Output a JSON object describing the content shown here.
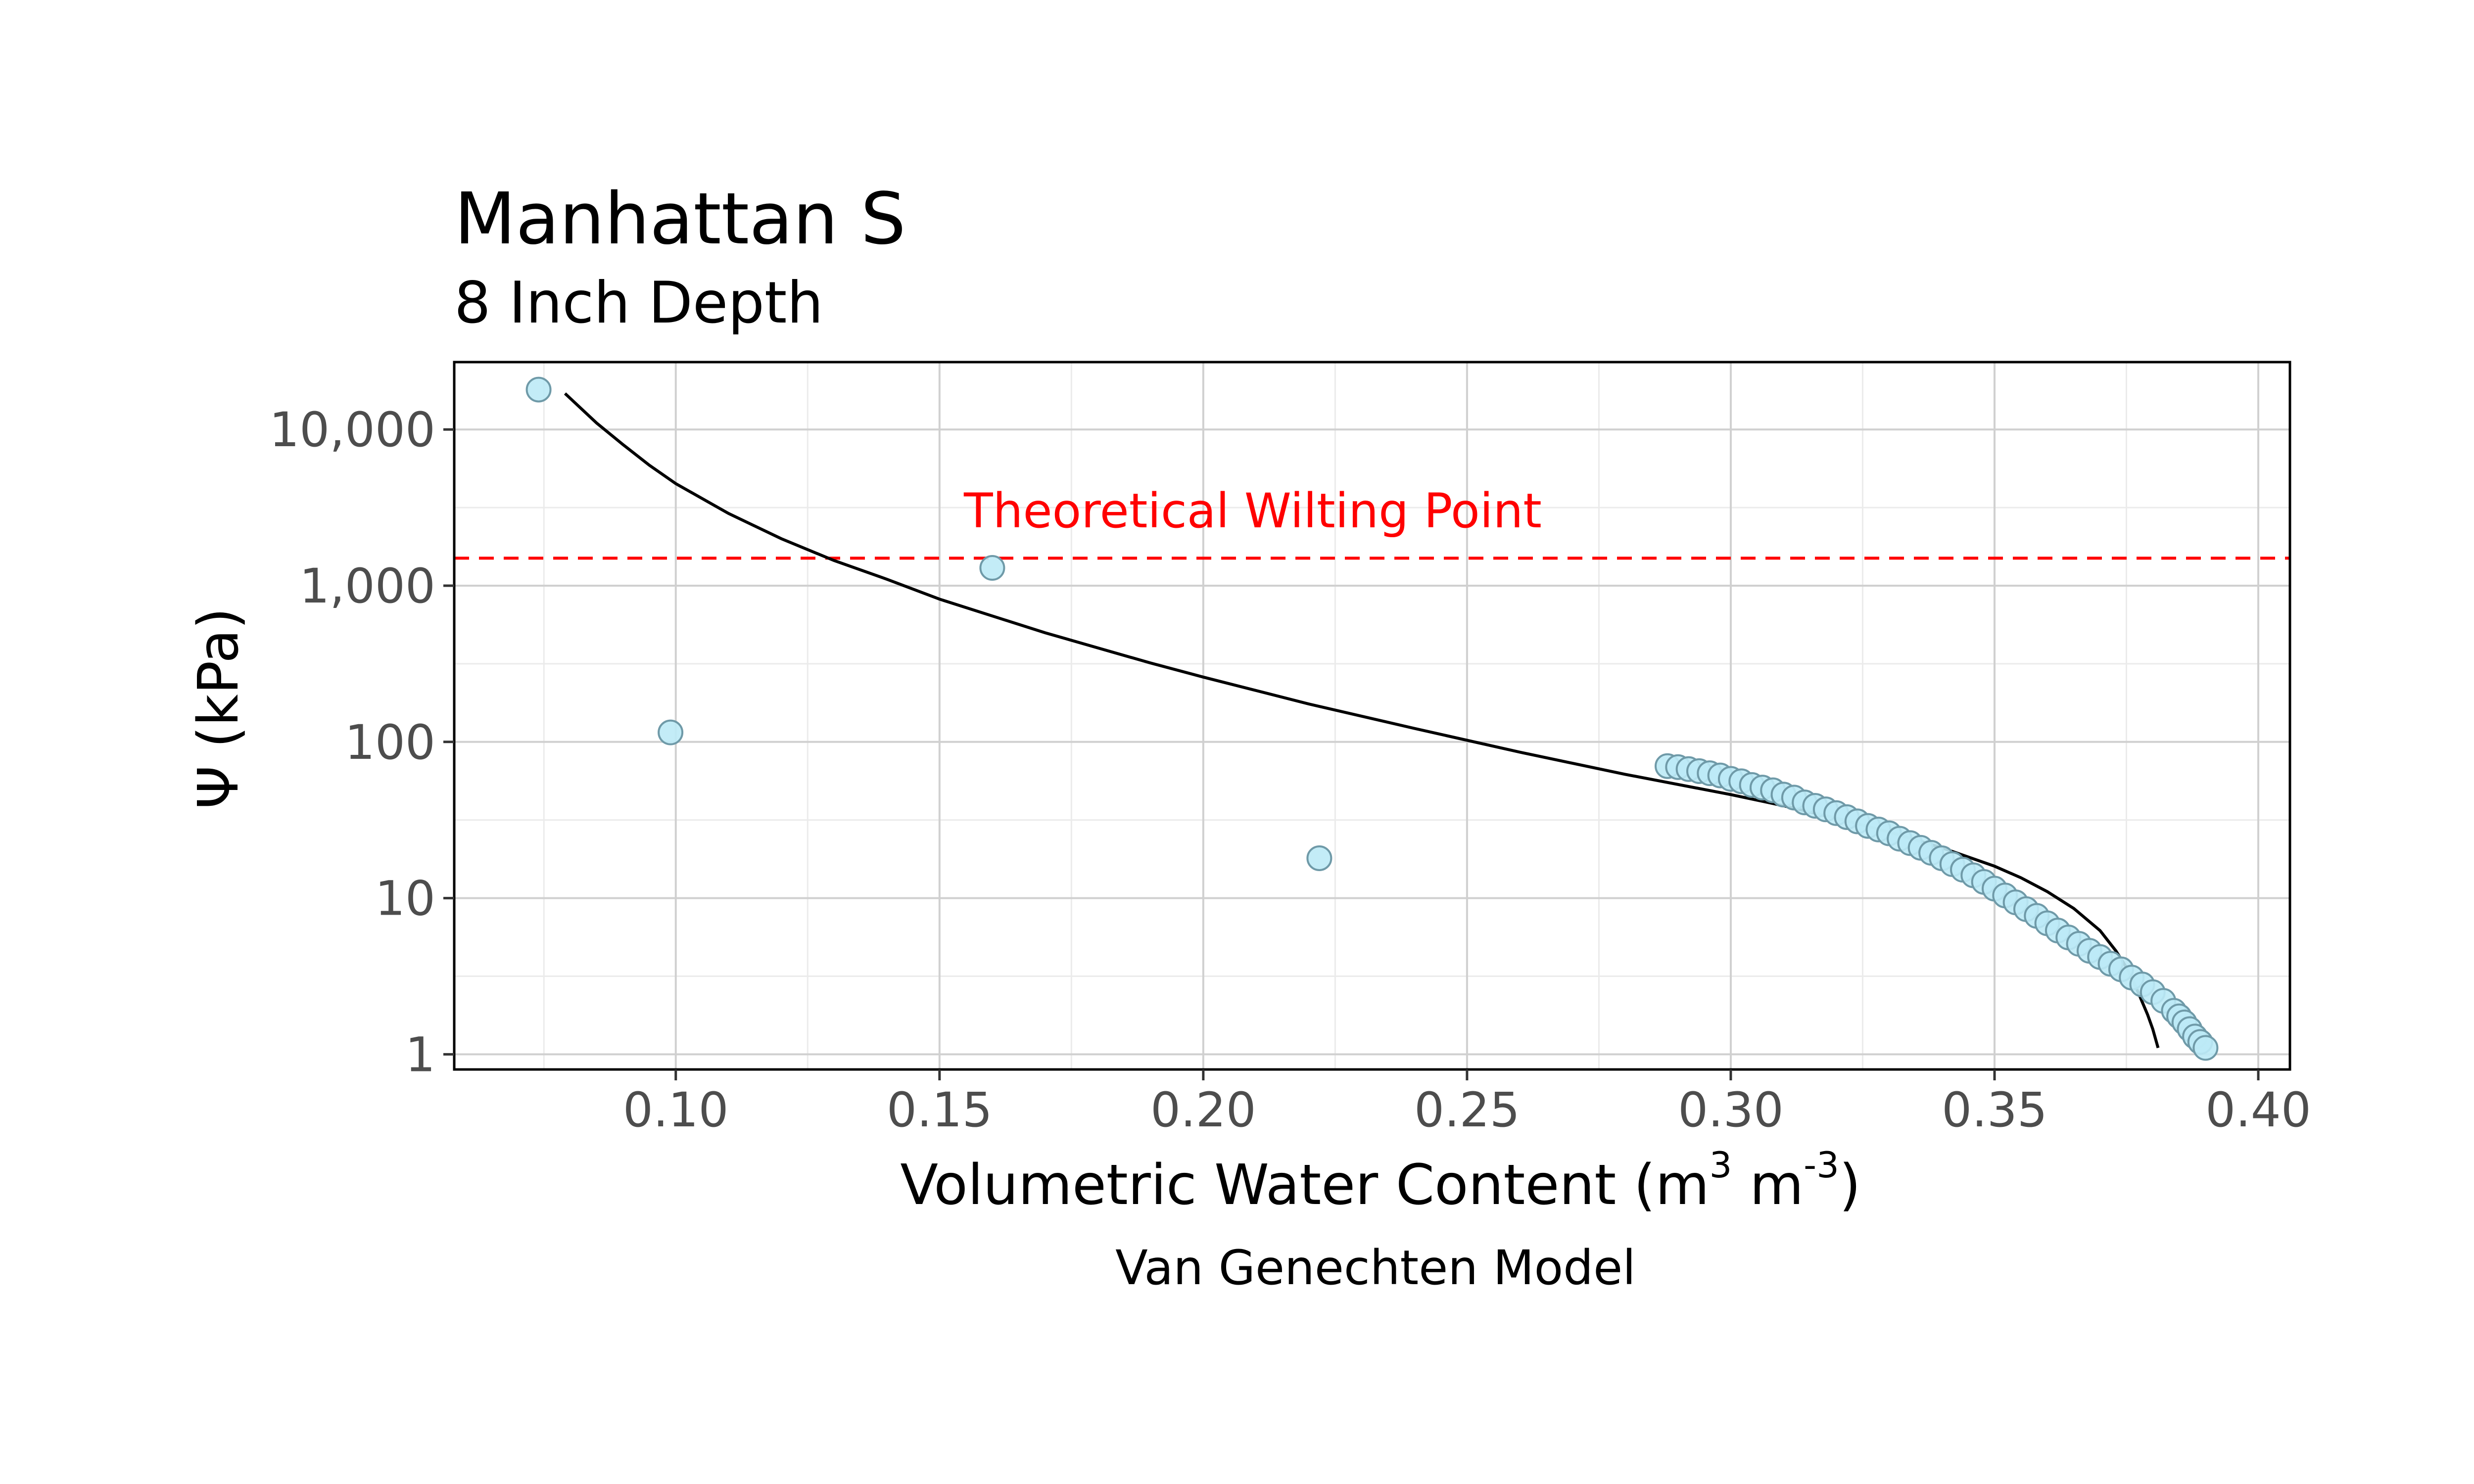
{
  "chart_data": {
    "type": "scatter",
    "title": "Manhattan S",
    "subtitle": "8 Inch Depth",
    "xlabel_main": "Volumetric Water Content (m",
    "xlabel_exp1": "3",
    "xlabel_mid": " m",
    "xlabel_exp2": "-3",
    "xlabel_end": ")",
    "ylabel": "Ψ (kPa)",
    "caption": "Van Genechten Model",
    "y_scale": "log10",
    "xlim": [
      0.058,
      0.406
    ],
    "ylim": [
      0.8,
      27000
    ],
    "grid": true,
    "x_ticks": [
      0.1,
      0.15,
      0.2,
      0.25,
      0.3,
      0.35,
      0.4
    ],
    "x_tick_labels": [
      "0.10",
      "0.15",
      "0.20",
      "0.25",
      "0.30",
      "0.35",
      "0.40"
    ],
    "y_ticks": [
      1,
      10,
      100,
      1000,
      10000
    ],
    "y_tick_labels": [
      "1",
      "10",
      "100",
      "1,000",
      "10,000"
    ],
    "reference_line": {
      "y": 1500,
      "label": "Theoretical Wilting Point",
      "color": "#ff0000",
      "style": "dashed"
    },
    "series": [
      {
        "kind": "points",
        "fill": "#bdeaf6",
        "stroke": "#6f9aa8",
        "x": [
          0.074,
          0.099,
          0.16,
          0.222,
          0.288,
          0.29,
          0.292,
          0.294,
          0.296,
          0.298,
          0.3,
          0.302,
          0.304,
          0.306,
          0.308,
          0.31,
          0.312,
          0.314,
          0.316,
          0.318,
          0.32,
          0.322,
          0.324,
          0.326,
          0.328,
          0.33,
          0.332,
          0.334,
          0.336,
          0.338,
          0.34,
          0.342,
          0.344,
          0.346,
          0.348,
          0.35,
          0.352,
          0.354,
          0.356,
          0.358,
          0.36,
          0.362,
          0.364,
          0.366,
          0.368,
          0.37,
          0.372,
          0.374,
          0.376,
          0.378,
          0.38,
          0.382,
          0.384,
          0.385,
          0.386,
          0.387,
          0.388,
          0.389,
          0.39
        ],
        "y": [
          18000,
          115,
          1300,
          18,
          70,
          69,
          67,
          65,
          63,
          61,
          58,
          56,
          53,
          51,
          49,
          46,
          44,
          41,
          39,
          37,
          35,
          33,
          31,
          29,
          27.5,
          26,
          24,
          22.5,
          21,
          19.5,
          18,
          16.5,
          15.2,
          14,
          12.7,
          11.5,
          10.4,
          9.4,
          8.5,
          7.7,
          6.9,
          6.2,
          5.6,
          5.1,
          4.6,
          4.2,
          3.8,
          3.5,
          3.1,
          2.8,
          2.5,
          2.2,
          1.9,
          1.75,
          1.6,
          1.45,
          1.3,
          1.2,
          1.1
        ]
      },
      {
        "kind": "curve",
        "color": "#000000",
        "x": [
          0.079,
          0.085,
          0.09,
          0.095,
          0.1,
          0.11,
          0.12,
          0.13,
          0.14,
          0.15,
          0.16,
          0.17,
          0.18,
          0.19,
          0.2,
          0.22,
          0.24,
          0.26,
          0.28,
          0.3,
          0.31,
          0.32,
          0.33,
          0.34,
          0.35,
          0.355,
          0.36,
          0.365,
          0.37,
          0.373,
          0.375,
          0.377,
          0.379,
          0.38,
          0.381
        ],
        "y": [
          17000,
          11000,
          8000,
          5900,
          4500,
          2900,
          2000,
          1450,
          1100,
          820,
          640,
          500,
          400,
          320,
          260,
          175,
          122,
          86,
          62,
          46,
          39,
          32.5,
          26.5,
          21,
          16,
          13.5,
          11,
          8.6,
          6.2,
          4.6,
          3.6,
          2.6,
          1.8,
          1.45,
          1.1
        ]
      }
    ]
  }
}
